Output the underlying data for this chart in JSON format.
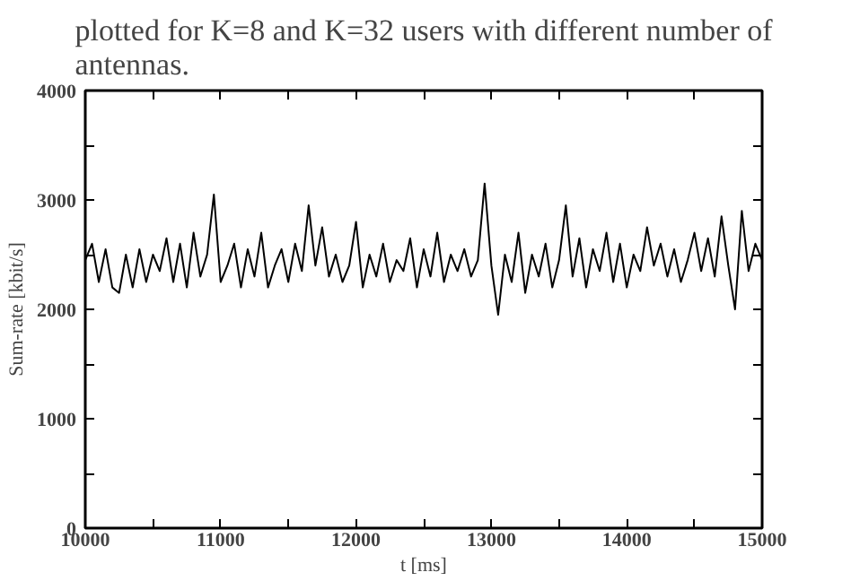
{
  "chart_data": {
    "type": "line",
    "title": "plotted for K=8 and K=32 users with different number of antennas.",
    "xlabel": "t [ms]",
    "ylabel": "Sum-rate [kbit/s]",
    "x": [
      10000,
      10050,
      10100,
      10150,
      10200,
      10250,
      10300,
      10350,
      10400,
      10450,
      10500,
      10550,
      10600,
      10650,
      10700,
      10750,
      10800,
      10850,
      10900,
      10950,
      11000,
      11050,
      11100,
      11150,
      11200,
      11250,
      11300,
      11350,
      11400,
      11450,
      11500,
      11550,
      11600,
      11650,
      11700,
      11750,
      11800,
      11850,
      11900,
      11950,
      12000,
      12050,
      12100,
      12150,
      12200,
      12250,
      12300,
      12350,
      12400,
      12450,
      12500,
      12550,
      12600,
      12650,
      12700,
      12750,
      12800,
      12850,
      12900,
      12950,
      13000,
      13050,
      13100,
      13150,
      13200,
      13250,
      13300,
      13350,
      13400,
      13450,
      13500,
      13550,
      13600,
      13650,
      13700,
      13750,
      13800,
      13850,
      13900,
      13950,
      14000,
      14050,
      14100,
      14150,
      14200,
      14250,
      14300,
      14350,
      14400,
      14450,
      14500,
      14550,
      14600,
      14650,
      14700,
      14750,
      14800,
      14850,
      14900,
      14950,
      15000
    ],
    "series": [
      {
        "color": "#000000",
        "values": [
          2450,
          2600,
          2250,
          2550,
          2200,
          2150,
          2500,
          2200,
          2550,
          2250,
          2500,
          2350,
          2650,
          2250,
          2600,
          2200,
          2700,
          2300,
          2500,
          3050,
          2250,
          2400,
          2600,
          2200,
          2550,
          2300,
          2700,
          2200,
          2400,
          2550,
          2250,
          2600,
          2350,
          2950,
          2400,
          2750,
          2300,
          2500,
          2250,
          2400,
          2800,
          2200,
          2500,
          2300,
          2600,
          2250,
          2450,
          2350,
          2650,
          2200,
          2550,
          2300,
          2700,
          2250,
          2500,
          2350,
          2550,
          2300,
          2450,
          3150,
          2400,
          1950,
          2500,
          2250,
          2700,
          2150,
          2500,
          2300,
          2600,
          2200,
          2450,
          2950,
          2300,
          2650,
          2200,
          2550,
          2350,
          2700,
          2250,
          2600,
          2200,
          2500,
          2350,
          2750,
          2400,
          2600,
          2300,
          2550,
          2250,
          2450,
          2700,
          2350,
          2650,
          2300,
          2850,
          2400,
          2000,
          2900,
          2350,
          2600,
          2450
        ]
      }
    ],
    "xlim": [
      10000,
      15000
    ],
    "ylim": [
      0,
      4000
    ],
    "xticks": [
      10000,
      {
        "value": 10500,
        "label": null
      },
      11000,
      {
        "value": 11500,
        "label": null
      },
      12000,
      {
        "value": 12500,
        "label": null
      },
      13000,
      {
        "value": 13500,
        "label": null
      },
      14000,
      {
        "value": 14500,
        "label": null
      },
      15000
    ],
    "yticks": [
      0,
      {
        "value": 500,
        "label": null
      },
      1000,
      {
        "value": 1500,
        "label": null
      },
      2000,
      {
        "value": 2500,
        "label": null
      },
      3000,
      {
        "value": 3500,
        "label": null
      },
      4000
    ],
    "grid": false,
    "marker": "none",
    "line_style": "solid"
  }
}
